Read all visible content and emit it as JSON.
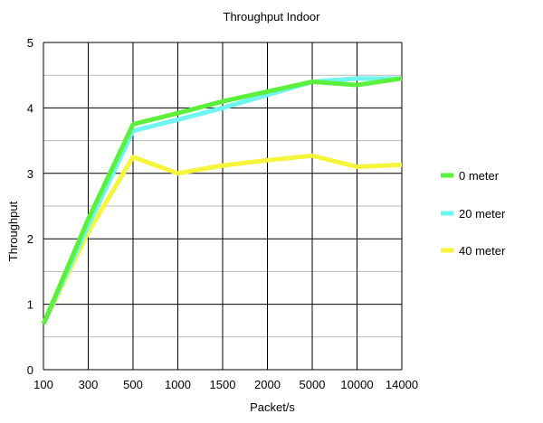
{
  "chart_data": {
    "type": "line",
    "title": "Throughput Indoor",
    "xlabel": "Packet/s",
    "ylabel": "Throughput",
    "categories": [
      "100",
      "300",
      "500",
      "1000",
      "1500",
      "2000",
      "5000",
      "10000",
      "14000"
    ],
    "ylim": [
      0,
      5
    ],
    "yticks": [
      "0",
      "1",
      "2",
      "3",
      "4",
      "5"
    ],
    "grid": true,
    "legend_position": "right",
    "series": [
      {
        "name": "0 meter",
        "color": "#5cf03c",
        "values": [
          0.7,
          2.3,
          3.75,
          3.92,
          4.1,
          4.25,
          4.4,
          4.35,
          4.45
        ]
      },
      {
        "name": "20 meter",
        "color": "#6ef5f0",
        "values": [
          0.7,
          2.2,
          3.65,
          3.82,
          4.0,
          4.2,
          4.4,
          4.45,
          4.45
        ]
      },
      {
        "name": "40 meter",
        "color": "#f5f53c",
        "values": [
          0.7,
          2.1,
          3.25,
          3.0,
          3.12,
          3.2,
          3.27,
          3.1,
          3.13
        ]
      }
    ]
  }
}
